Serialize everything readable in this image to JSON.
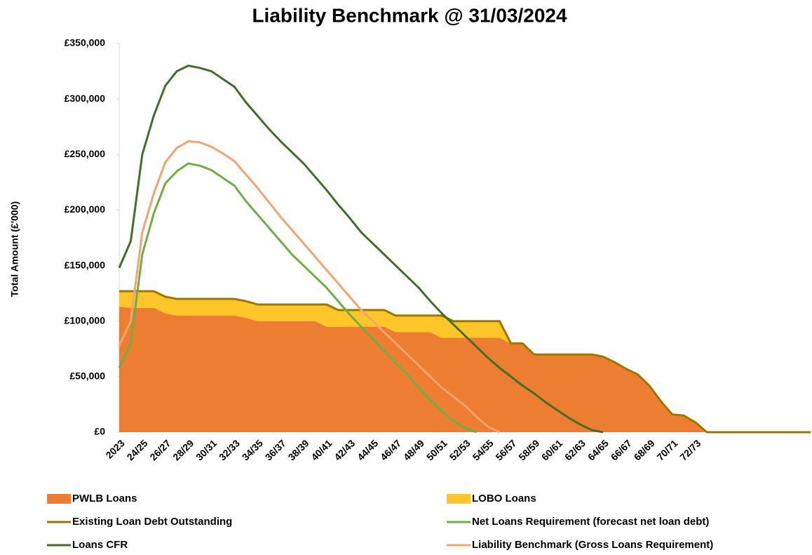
{
  "chart_data": {
    "type": "area",
    "title": "Liability Benchmark @ 31/03/2024",
    "ylabel": "Total Amount (£'000)",
    "categories": [
      "2023",
      null,
      "24/25",
      null,
      "26/27",
      null,
      "28/29",
      null,
      "30/31",
      null,
      "32/33",
      null,
      "34/35",
      null,
      "36/37",
      null,
      "38/39",
      null,
      "40/41",
      null,
      "42/43",
      null,
      "44/45",
      null,
      "46/47",
      null,
      "48/49",
      null,
      "50/51",
      null,
      "52/53",
      null,
      "54/55",
      null,
      "56/57",
      null,
      "58/59",
      null,
      "60/61",
      null,
      "62/63",
      null,
      "64/65",
      null,
      "66/67",
      null,
      "68/69",
      null,
      "70/71",
      null,
      "72/73",
      null,
      null,
      null,
      null,
      null,
      null,
      null,
      null,
      null,
      null
    ],
    "ylim": [
      0,
      350000
    ],
    "yticks": [
      {
        "value": 0,
        "label": "£0"
      },
      {
        "value": 50000,
        "label": "£50,000"
      },
      {
        "value": 100000,
        "label": "£100,000"
      },
      {
        "value": 150000,
        "label": "£150,000"
      },
      {
        "value": 200000,
        "label": "£200,000"
      },
      {
        "value": 250000,
        "label": "£250,000"
      },
      {
        "value": 300000,
        "label": "£300,000"
      },
      {
        "value": 350000,
        "label": "£350,000"
      }
    ],
    "grid": false,
    "legend": "bottom",
    "series": [
      {
        "name": "PWLB Loans",
        "kind": "area",
        "color": "#ed7d31",
        "values": [
          113000,
          112000,
          112000,
          112000,
          107000,
          105000,
          105000,
          105000,
          105000,
          105000,
          105000,
          103000,
          100000,
          100000,
          100000,
          100000,
          100000,
          100000,
          95000,
          95000,
          95000,
          95000,
          95000,
          95000,
          90000,
          90000,
          90000,
          90000,
          85000,
          85000,
          85000,
          85000,
          85000,
          85000,
          80000,
          80000,
          70000,
          70000,
          70000,
          70000,
          70000,
          70000,
          68000,
          63000,
          57000,
          52000,
          42000,
          28000,
          16000,
          15000,
          9000,
          0,
          0,
          0,
          0,
          0,
          0,
          0,
          0,
          0,
          0
        ]
      },
      {
        "name": "LOBO Loans",
        "kind": "area",
        "color": "#ffc629",
        "values": [
          14000,
          15000,
          15000,
          15000,
          15000,
          15000,
          15000,
          15000,
          15000,
          15000,
          15000,
          15000,
          15000,
          15000,
          15000,
          15000,
          15000,
          15000,
          20000,
          15000,
          15000,
          15000,
          15000,
          15000,
          15000,
          15000,
          15000,
          15000,
          20000,
          15000,
          15000,
          15000,
          15000,
          15000,
          0,
          0,
          0,
          0,
          0,
          0,
          0,
          0,
          0,
          0,
          0,
          0,
          0,
          0,
          0,
          0,
          0,
          0,
          0,
          0,
          0,
          0,
          0,
          0,
          0,
          0,
          0
        ]
      },
      {
        "name": "Existing Loan Debt Outstanding",
        "kind": "line",
        "color": "#9c7700",
        "values": [
          127000,
          127000,
          127000,
          127000,
          122000,
          120000,
          120000,
          120000,
          120000,
          120000,
          120000,
          118000,
          115000,
          115000,
          115000,
          115000,
          115000,
          115000,
          115000,
          110000,
          110000,
          110000,
          110000,
          110000,
          105000,
          105000,
          105000,
          105000,
          105000,
          100000,
          100000,
          100000,
          100000,
          100000,
          80000,
          80000,
          70000,
          70000,
          70000,
          70000,
          70000,
          70000,
          68000,
          63000,
          57000,
          52000,
          42000,
          28000,
          16000,
          15000,
          9000,
          0,
          0,
          0,
          0,
          0,
          0,
          0,
          0,
          0,
          0
        ]
      },
      {
        "name": "Net Loans Requirement (forecast net loan debt)",
        "kind": "line",
        "color": "#70ad47",
        "values": [
          58000,
          80000,
          160000,
          197000,
          224000,
          235000,
          242000,
          240000,
          236000,
          229000,
          222000,
          208000,
          196000,
          184000,
          172000,
          160000,
          150000,
          140000,
          130000,
          118000,
          106000,
          95000,
          84000,
          73000,
          62000,
          52000,
          40000,
          29000,
          19000,
          10000,
          4000,
          0,
          null,
          null,
          null,
          null,
          null,
          null,
          null,
          null,
          null,
          null,
          null,
          null,
          null,
          null,
          null,
          null,
          null,
          null,
          null,
          null,
          null,
          null,
          null,
          null,
          null,
          null,
          null,
          null,
          null
        ]
      },
      {
        "name": "Loans CFR",
        "kind": "line",
        "color": "#426d2a",
        "values": [
          148000,
          172000,
          250000,
          285000,
          312000,
          325000,
          330000,
          328000,
          325000,
          318000,
          311000,
          297000,
          285000,
          273000,
          262000,
          252000,
          242000,
          230000,
          218000,
          205000,
          193000,
          180000,
          170000,
          160000,
          150000,
          140000,
          130000,
          118000,
          107000,
          97000,
          87000,
          77000,
          67000,
          58000,
          50000,
          42000,
          35000,
          27000,
          20000,
          13000,
          7000,
          2000,
          0,
          null,
          null,
          null,
          null,
          null,
          null,
          null,
          null,
          null,
          null,
          null,
          null,
          null,
          null,
          null,
          null,
          null,
          null
        ]
      },
      {
        "name": "Liability Benchmark (Gross Loans Requirement)",
        "kind": "line",
        "color": "#f4a46e",
        "values": [
          78000,
          100000,
          180000,
          215000,
          243000,
          256000,
          262000,
          261000,
          257000,
          251000,
          244000,
          232000,
          220000,
          207000,
          194000,
          182000,
          170000,
          158000,
          146000,
          134000,
          122000,
          110000,
          100000,
          90000,
          80000,
          70000,
          60000,
          50000,
          40000,
          32000,
          24000,
          14000,
          5000,
          0,
          null,
          null,
          null,
          null,
          null,
          null,
          null,
          null,
          null,
          null,
          null,
          null,
          null,
          null,
          null,
          null,
          null,
          null,
          null,
          null,
          null,
          null,
          null,
          null,
          null,
          null,
          null
        ]
      }
    ]
  }
}
